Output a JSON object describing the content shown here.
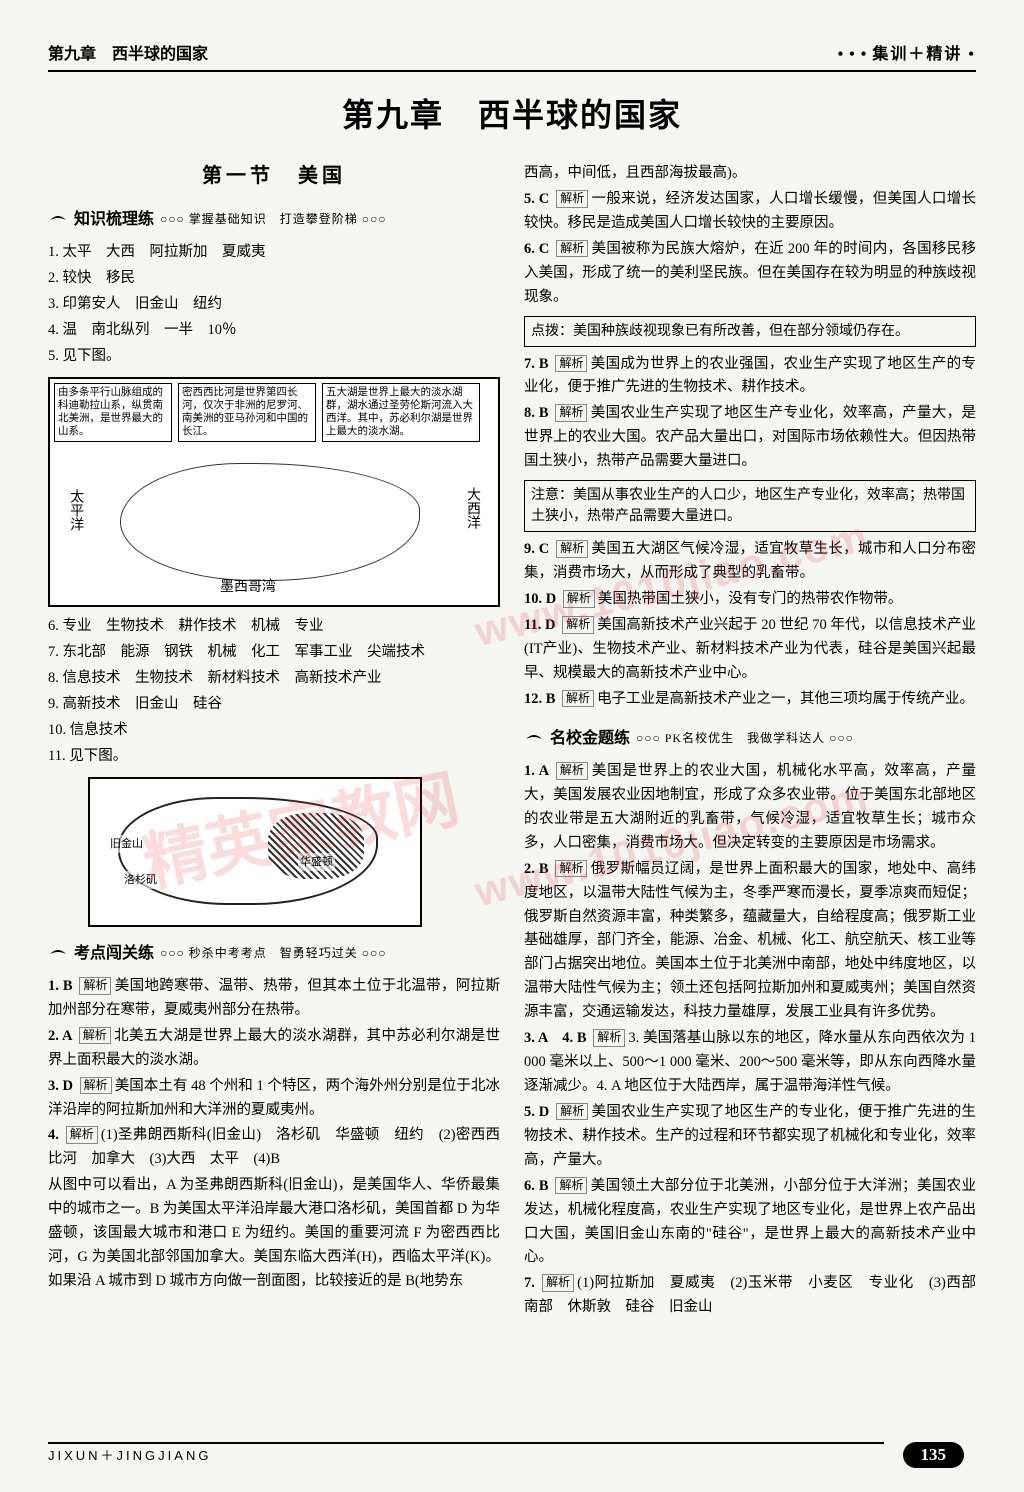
{
  "header": {
    "left": "第九章　西半球的国家",
    "right": "集训＋精讲"
  },
  "chapter_title": "第九章　西半球的国家",
  "section1_title": "第一节　美国",
  "heads": {
    "knowledge": {
      "name": "知识梳理练",
      "tail": "○○○ 掌握基础知识　打造攀登阶梯 ○○○"
    },
    "exam": {
      "name": "考点闯关练",
      "tail": "○○○ 秒杀中考考点　智勇轻巧过关 ○○○"
    },
    "school": {
      "name": "名校金题练",
      "tail": "○○○ PK名校优生　我做学科达人 ○○○"
    }
  },
  "knowledge_items": [
    "1. 太平　大西　阿拉斯加　夏威夷",
    "2. 较快　移民",
    "3. 印第安人　旧金山　纽约",
    "4. 温　南北纵列　一半　10％",
    "5. 见下图。"
  ],
  "map1": {
    "box_a": "由多条平行山脉组成的科迪勒拉山系，纵贯南北美洲，是世界最大的山系。",
    "box_b": "密西西比河是世界第四长河，仅次于非洲的尼罗河、南美洲的亚马孙河和中国的长江。",
    "box_c": "五大湖是世界上最大的淡水湖群，湖水通过圣劳伦斯河流入大西洋。其中，苏必利尔湖是世界上最大的淡水湖。",
    "labels": {
      "pac": "太平洋",
      "atl": "大西洋",
      "gulf": "墨西哥湾"
    }
  },
  "knowledge_items2": [
    "6. 专业　生物技术　耕作技术　机械　专业",
    "7. 东北部　能源　钢铁　机械　化工　军事工业　尖端技术",
    "8. 信息技术　生物技术　新材料技术　高新技术产业",
    "9. 高新技术　旧金山　硅谷",
    "10. 信息技术",
    "11. 见下图。"
  ],
  "map2": {
    "labels": [
      "旧金山",
      "洛杉矶",
      "华盛顿"
    ]
  },
  "exam_items": [
    {
      "num": "1. B",
      "text": "美国地跨寒带、温带、热带，但其本土位于北温带，阿拉斯加州部分在寒带，夏威夷州部分在热带。"
    },
    {
      "num": "2. A",
      "text": "北美五大湖是世界上最大的淡水湖群，其中苏必利尔湖是世界上面积最大的淡水湖。"
    },
    {
      "num": "3. D",
      "text": "美国本土有 48 个州和 1 个特区，两个海外州分别是位于北冰洋沿岸的阿拉斯加州和大洋洲的夏威夷州。"
    },
    {
      "num": "4.",
      "text": "(1)圣弗朗西斯科(旧金山)　洛杉矶　华盛顿　纽约　(2)密西西比河　加拿大　(3)大西　太平　(4)B"
    },
    {
      "num": "",
      "text": "从图中可以看出，A 为圣弗朗西斯科(旧金山)，是美国华人、华侨最集中的城市之一。B 为美国太平洋沿岸最大港口洛杉矶，美国首都 D 为华盛顿，该国最大城市和港口 E 为纽约。美国的重要河流 F 为密西西比河，G 为美国北部邻国加拿大。美国东临大西洋(H)，西临太平洋(K)。如果沿 A 城市到 D 城市方向做一剖面图，比较接近的是 B(地势东"
    }
  ],
  "right_intro": "西高，中间低，且西部海拔最高)。",
  "right_items": [
    {
      "num": "5. C",
      "text": "一般来说，经济发达国家，人口增长缓慢，但美国人口增长较快。移民是造成美国人口增长较快的主要原因。"
    },
    {
      "num": "6. C",
      "text": "美国被称为民族大熔炉，在近 200 年的时间内，各国移民移入美国，形成了统一的美利坚民族。但在美国存在较为明显的种族歧视现象。"
    }
  ],
  "note1": "点拨：美国种族歧视现象已有所改善，但在部分领域仍存在。",
  "right_items2": [
    {
      "num": "7. B",
      "text": "美国成为世界上的农业强国，农业生产实现了地区生产的专业化，便于推广先进的生物技术、耕作技术。"
    },
    {
      "num": "8. B",
      "text": "美国农业生产实现了地区生产专业化，效率高，产量大，是世界上的农业大国。农产品大量出口，对国际市场依赖性大。但因热带国土狭小，热带产品需要大量进口。"
    }
  ],
  "note2": "注意：美国从事农业生产的人口少，地区生产专业化，效率高；热带国土狭小，热带产品需要大量进口。",
  "right_items3": [
    {
      "num": "9. C",
      "text": "美国五大湖区气候冷湿，适宜牧草生长，城市和人口分布密集，消费市场大，从而形成了典型的乳畜带。"
    },
    {
      "num": "10. D",
      "text": "美国热带国土狭小，没有专门的热带农作物带。"
    },
    {
      "num": "11. D",
      "text": "美国高新技术产业兴起于 20 世纪 70 年代，以信息技术产业(IT产业)、生物技术产业、新材料技术产业为代表，硅谷是美国兴起最早、规模最大的高新技术产业中心。"
    },
    {
      "num": "12. B",
      "text": "电子工业是高新技术产业之一，其他三项均属于传统产业。"
    }
  ],
  "school_items": [
    {
      "num": "1. A",
      "text": "美国是世界上的农业大国，机械化水平高，效率高，产量大，美国发展农业因地制宜，形成了众多农业带。位于美国东北部地区的农业带是五大湖附近的乳畜带，气候冷湿，适宜牧草生长；城市众多，人口密集，消费市场大。但决定转变的主要原因是市场需求。"
    },
    {
      "num": "2. B",
      "text": "俄罗斯幅员辽阔，是世界上面积最大的国家，地处中、高纬度地区，以温带大陆性气候为主，冬季严寒而漫长，夏季凉爽而短促；俄罗斯自然资源丰富，种类繁多，蕴藏量大，自给程度高；俄罗斯工业基础雄厚，部门齐全，能源、冶金、机械、化工、航空航天、核工业等部门占据突出地位。美国本土位于北美洲中南部，地处中纬度地区，以温带大陆性气候为主；领土还包括阿拉斯加州和夏威夷州；美国自然资源丰富，交通运输发达，科技力量雄厚，发展工业具有许多优势。"
    },
    {
      "num": "3. A　4. B",
      "text": "3. 美国落基山脉以东的地区，降水量从东向西依次为 1 000 毫米以上、500～1 000 毫米、200～500 毫米等，即从东向西降水量逐渐减少。4. A 地区位于大陆西岸，属于温带海洋性气候。"
    },
    {
      "num": "5. D",
      "text": "美国农业生产实现了地区生产的专业化，便于推广先进的生物技术、耕作技术。生产的过程和环节都实现了机械化和专业化，效率高，产量大。"
    },
    {
      "num": "6. B",
      "text": "美国领土大部分位于北美洲，小部分位于大洋洲；美国农业发达，机械化程度高，农业生产实现了地区专业化，是世界上农产品出口大国，美国旧金山东南的\"硅谷\"，是世界上最大的高新技术产业中心。"
    },
    {
      "num": "7.",
      "text": "(1)阿拉斯加　夏威夷　(2)玉米带　小麦区　专业化　(3)西部　南部　休斯敦　硅谷　旧金山"
    }
  ],
  "analysis_label": "解析",
  "footer": {
    "text": "JIXUN＋JINGJIANG",
    "page": "135"
  },
  "watermarks": {
    "a": "精英家教网",
    "b": "www.1010jiao.com",
    "c": "www.1010jiao.com"
  },
  "colors": {
    "text": "#000000",
    "note_border": "#000000",
    "watermark": "rgba(230,60,60,0.18)",
    "badge_bg": "#000000"
  }
}
